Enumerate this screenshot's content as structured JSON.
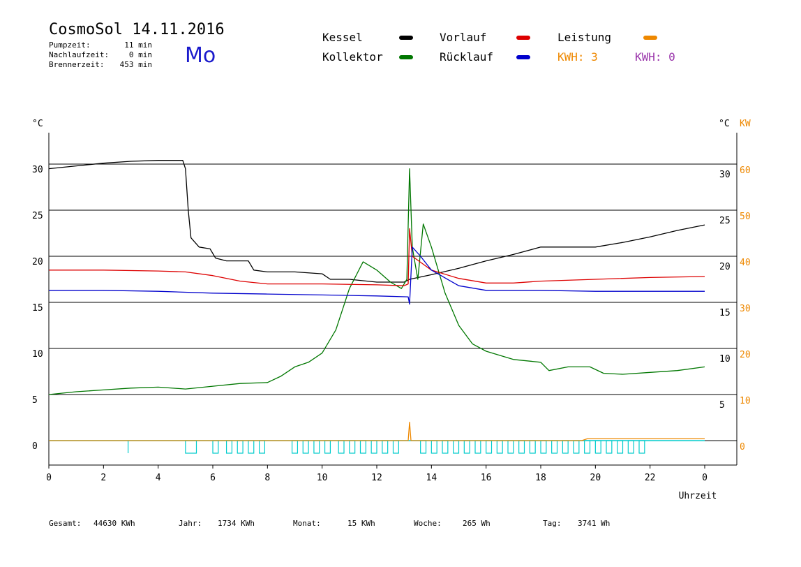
{
  "header": {
    "title": "CosmoSol 14.11.2016",
    "day": "Mo",
    "pumpzeit_label": "Pumpzeit:",
    "pumpzeit_value": "11 min",
    "nachlauf_label": "Nachlaufzeit:",
    "nachlauf_value": "0 min",
    "brenner_label": "Brennerzeit:",
    "brenner_value": "453 min"
  },
  "legend": {
    "kessel": "Kessel",
    "kollektor": "Kollektor",
    "vorlauf": "Vorlauf",
    "ruecklauf": "Rücklauf",
    "leistung": "Leistung",
    "kwh_orange": "KWH: 3",
    "kwh_purple": "KWH: 0"
  },
  "colors": {
    "kessel": "#000000",
    "kollektor": "#007700",
    "vorlauf": "#dd0000",
    "ruecklauf": "#0000cc",
    "leistung": "#ee8800",
    "pumpe": "#00cccc",
    "kwh_orange": "#ee8800",
    "kwh_purple": "#9933aa"
  },
  "footer": {
    "gesamt_label": "Gesamt:",
    "gesamt_value": "44630 KWh",
    "jahr_label": "Jahr:",
    "jahr_value": "1734 KWh",
    "monat_label": "Monat:",
    "monat_value": "15 KWh",
    "woche_label": "Woche:",
    "woche_value": "265 Wh",
    "tag_label": "Tag:",
    "tag_value": "3741 Wh"
  },
  "chart_data": {
    "type": "line",
    "xlabel": "Uhrzeit",
    "ylabel_left": "°C",
    "ylabel_right": "°C",
    "ylabel_right2": "KW",
    "xlim": [
      0,
      24
    ],
    "ylim": [
      -2.5,
      33
    ],
    "x_ticks": [
      "0",
      "2",
      "4",
      "6",
      "8",
      "10",
      "12",
      "14",
      "16",
      "18",
      "20",
      "22",
      "0"
    ],
    "y_ticks_left": [
      "0",
      "5",
      "10",
      "15",
      "20",
      "25",
      "30"
    ],
    "y_ticks_right": [
      "5",
      "10",
      "15",
      "20",
      "25",
      "30"
    ],
    "y_ticks_right2": [
      "0",
      "10",
      "20",
      "30",
      "40",
      "50",
      "60"
    ],
    "gridlines_y": [
      0,
      5,
      10,
      15,
      20,
      25,
      30
    ],
    "series": [
      {
        "name": "Kessel",
        "color": "#000000",
        "points": [
          [
            0,
            29.5
          ],
          [
            1,
            29.8
          ],
          [
            2,
            30.1
          ],
          [
            3,
            30.3
          ],
          [
            4,
            30.4
          ],
          [
            4.9,
            30.4
          ],
          [
            5.0,
            29.5
          ],
          [
            5.1,
            25
          ],
          [
            5.2,
            22
          ],
          [
            5.5,
            21
          ],
          [
            5.9,
            20.8
          ],
          [
            6.1,
            19.8
          ],
          [
            6.5,
            19.5
          ],
          [
            7.3,
            19.5
          ],
          [
            7.5,
            18.5
          ],
          [
            8,
            18.3
          ],
          [
            9,
            18.3
          ],
          [
            10,
            18.1
          ],
          [
            10.3,
            17.5
          ],
          [
            11,
            17.5
          ],
          [
            12,
            17.2
          ],
          [
            13,
            17.2
          ],
          [
            13.2,
            17.5
          ],
          [
            14,
            18
          ],
          [
            15,
            18.7
          ],
          [
            16,
            19.5
          ],
          [
            17,
            20.2
          ],
          [
            18,
            21
          ],
          [
            19,
            21
          ],
          [
            20,
            21
          ],
          [
            21,
            21.5
          ],
          [
            22,
            22.1
          ],
          [
            23,
            22.8
          ],
          [
            24,
            23.4
          ]
        ]
      },
      {
        "name": "Kollektor",
        "color": "#007700",
        "points": [
          [
            0,
            5.0
          ],
          [
            1,
            5.3
          ],
          [
            2,
            5.5
          ],
          [
            3,
            5.7
          ],
          [
            4,
            5.8
          ],
          [
            5,
            5.6
          ],
          [
            6,
            5.9
          ],
          [
            7,
            6.2
          ],
          [
            8,
            6.3
          ],
          [
            8.5,
            7
          ],
          [
            9,
            8
          ],
          [
            9.5,
            8.5
          ],
          [
            10,
            9.5
          ],
          [
            10.5,
            12
          ],
          [
            11,
            16.5
          ],
          [
            11.5,
            19.4
          ],
          [
            12,
            18.5
          ],
          [
            12.5,
            17.2
          ],
          [
            12.9,
            16.5
          ],
          [
            13.1,
            17.5
          ],
          [
            13.2,
            29.5
          ],
          [
            13.3,
            21
          ],
          [
            13.5,
            17.5
          ],
          [
            13.7,
            23.5
          ],
          [
            14,
            21
          ],
          [
            14.5,
            16
          ],
          [
            15,
            12.5
          ],
          [
            15.5,
            10.5
          ],
          [
            16,
            9.7
          ],
          [
            17,
            8.8
          ],
          [
            18,
            8.5
          ],
          [
            18.3,
            7.6
          ],
          [
            19,
            8
          ],
          [
            19.8,
            8
          ],
          [
            20.3,
            7.3
          ],
          [
            21,
            7.2
          ],
          [
            22,
            7.4
          ],
          [
            23,
            7.6
          ],
          [
            24,
            8
          ]
        ]
      },
      {
        "name": "Vorlauf",
        "color": "#dd0000",
        "points": [
          [
            0,
            18.5
          ],
          [
            2,
            18.5
          ],
          [
            4,
            18.4
          ],
          [
            5,
            18.3
          ],
          [
            6,
            17.9
          ],
          [
            7,
            17.3
          ],
          [
            8,
            17.0
          ],
          [
            10,
            17.0
          ],
          [
            12,
            16.9
          ],
          [
            13,
            16.8
          ],
          [
            13.15,
            17
          ],
          [
            13.2,
            23
          ],
          [
            13.3,
            20
          ],
          [
            14,
            18.5
          ],
          [
            15,
            17.6
          ],
          [
            16,
            17.1
          ],
          [
            17,
            17.1
          ],
          [
            18,
            17.3
          ],
          [
            20,
            17.5
          ],
          [
            22,
            17.7
          ],
          [
            24,
            17.8
          ]
        ]
      },
      {
        "name": "Rücklauf",
        "color": "#0000cc",
        "points": [
          [
            0,
            16.3
          ],
          [
            2,
            16.3
          ],
          [
            4,
            16.2
          ],
          [
            6,
            16.0
          ],
          [
            8,
            15.9
          ],
          [
            10,
            15.8
          ],
          [
            12,
            15.7
          ],
          [
            13.15,
            15.6
          ],
          [
            13.2,
            14.8
          ],
          [
            13.3,
            21
          ],
          [
            13.6,
            20
          ],
          [
            14,
            18.5
          ],
          [
            15,
            16.8
          ],
          [
            16,
            16.3
          ],
          [
            18,
            16.3
          ],
          [
            20,
            16.2
          ],
          [
            22,
            16.2
          ],
          [
            24,
            16.2
          ]
        ]
      },
      {
        "name": "Leistung",
        "color": "#ee8800",
        "unit": "KW",
        "points": [
          [
            0,
            0
          ],
          [
            13.15,
            0
          ],
          [
            13.2,
            4
          ],
          [
            13.25,
            0
          ],
          [
            19.5,
            0
          ],
          [
            19.7,
            0.4
          ],
          [
            24,
            0.4
          ]
        ]
      }
    ],
    "pump_pulses": [
      [
        5.0,
        5.4
      ],
      [
        6.0,
        6.2
      ],
      [
        6.5,
        6.7
      ],
      [
        6.9,
        7.1
      ],
      [
        7.3,
        7.5
      ],
      [
        7.7,
        7.9
      ],
      [
        8.9,
        9.1
      ],
      [
        9.3,
        9.5
      ],
      [
        9.7,
        9.9
      ],
      [
        10.1,
        10.3
      ],
      [
        10.6,
        10.8
      ],
      [
        11.0,
        11.2
      ],
      [
        11.4,
        11.6
      ],
      [
        11.8,
        12.0
      ],
      [
        12.2,
        12.4
      ],
      [
        12.6,
        12.8
      ],
      [
        13.6,
        13.8
      ],
      [
        14.0,
        14.2
      ],
      [
        14.4,
        14.6
      ],
      [
        14.8,
        15.0
      ],
      [
        15.2,
        15.4
      ],
      [
        15.6,
        15.8
      ],
      [
        16.0,
        16.2
      ],
      [
        16.4,
        16.6
      ],
      [
        16.8,
        17.0
      ],
      [
        17.2,
        17.4
      ],
      [
        17.6,
        17.8
      ],
      [
        18.0,
        18.2
      ],
      [
        18.4,
        18.6
      ],
      [
        18.8,
        19.0
      ],
      [
        19.2,
        19.4
      ],
      [
        19.6,
        19.8
      ],
      [
        20.0,
        20.2
      ],
      [
        20.4,
        20.6
      ],
      [
        20.8,
        21.0
      ],
      [
        21.2,
        21.4
      ],
      [
        21.6,
        21.8
      ]
    ],
    "legend_position": "top"
  }
}
